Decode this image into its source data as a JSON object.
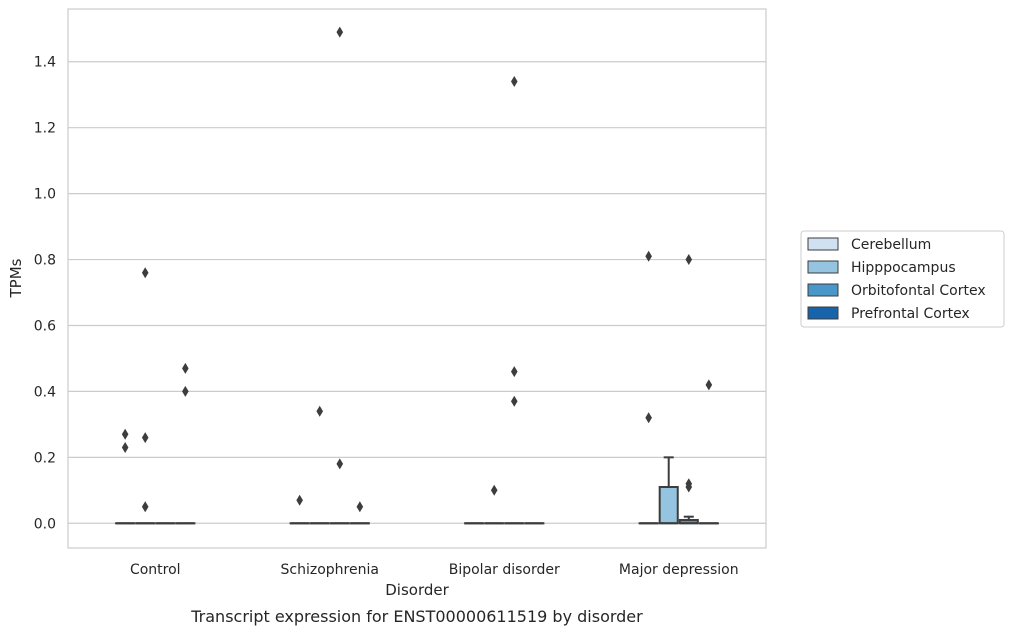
{
  "chart_data": {
    "type": "box",
    "title": "",
    "caption": "Transcript expression for ENST00000611519 by disorder",
    "xlabel": "Disorder",
    "ylabel": "TPMs",
    "categories": [
      "Control",
      "Schizophrenia",
      "Bipolar disorder",
      "Major depression"
    ],
    "ylim": [
      -0.075,
      1.56
    ],
    "yticks": [
      0.0,
      0.2,
      0.4,
      0.6,
      0.8,
      1.0,
      1.2,
      1.4
    ],
    "ytick_labels": [
      "0.0",
      "0.2",
      "0.4",
      "0.6",
      "0.8",
      "1.0",
      "1.2",
      "1.4"
    ],
    "grid": true,
    "legend_position": "right-center",
    "series": [
      {
        "name": "Cerebellum",
        "color": "#d0e1f2",
        "boxes": [
          {
            "q1": 0,
            "median": 0,
            "q3": 0,
            "whisker_low": 0,
            "whisker_high": 0,
            "outliers": [
              0.27,
              0.23
            ]
          },
          {
            "q1": 0,
            "median": 0,
            "q3": 0,
            "whisker_low": 0,
            "whisker_high": 0,
            "outliers": [
              0.07
            ]
          },
          {
            "q1": 0,
            "median": 0,
            "q3": 0,
            "whisker_low": 0,
            "whisker_high": 0,
            "outliers": []
          },
          {
            "q1": 0,
            "median": 0,
            "q3": 0,
            "whisker_low": 0,
            "whisker_high": 0,
            "outliers": [
              0.81,
              0.32
            ]
          }
        ]
      },
      {
        "name": "Hipppocampus",
        "color": "#94c4df",
        "boxes": [
          {
            "q1": 0,
            "median": 0,
            "q3": 0,
            "whisker_low": 0,
            "whisker_high": 0,
            "outliers": [
              0.76,
              0.26,
              0.05
            ]
          },
          {
            "q1": 0,
            "median": 0,
            "q3": 0,
            "whisker_low": 0,
            "whisker_high": 0,
            "outliers": [
              0.34
            ]
          },
          {
            "q1": 0,
            "median": 0,
            "q3": 0,
            "whisker_low": 0,
            "whisker_high": 0,
            "outliers": [
              0.1
            ]
          },
          {
            "q1": 0,
            "median": 0,
            "q3": 0.11,
            "whisker_low": 0,
            "whisker_high": 0.2,
            "outliers": []
          }
        ]
      },
      {
        "name": "Orbitofontal Cortex",
        "color": "#4a98c9",
        "boxes": [
          {
            "q1": 0,
            "median": 0,
            "q3": 0,
            "whisker_low": 0,
            "whisker_high": 0,
            "outliers": []
          },
          {
            "q1": 0,
            "median": 0,
            "q3": 0,
            "whisker_low": 0,
            "whisker_high": 0,
            "outliers": [
              1.49,
              0.18
            ]
          },
          {
            "q1": 0,
            "median": 0,
            "q3": 0,
            "whisker_low": 0,
            "whisker_high": 0,
            "outliers": [
              1.34,
              0.46,
              0.37
            ]
          },
          {
            "q1": 0,
            "median": 0,
            "q3": 0.01,
            "whisker_low": 0,
            "whisker_high": 0.02,
            "outliers": [
              0.8,
              0.12,
              0.11
            ]
          }
        ]
      },
      {
        "name": "Prefrontal Cortex",
        "color": "#1764ab",
        "boxes": [
          {
            "q1": 0,
            "median": 0,
            "q3": 0,
            "whisker_low": 0,
            "whisker_high": 0,
            "outliers": [
              0.47,
              0.4
            ]
          },
          {
            "q1": 0,
            "median": 0,
            "q3": 0,
            "whisker_low": 0,
            "whisker_high": 0,
            "outliers": [
              0.05
            ]
          },
          {
            "q1": 0,
            "median": 0,
            "q3": 0,
            "whisker_low": 0,
            "whisker_high": 0,
            "outliers": []
          },
          {
            "q1": 0,
            "median": 0,
            "q3": 0,
            "whisker_low": 0,
            "whisker_high": 0,
            "outliers": [
              0.42
            ]
          }
        ]
      }
    ]
  },
  "style": {
    "edge_color": "#3d3d3d",
    "grid_color": "#cccccc",
    "frame_color": "#cccccc"
  }
}
